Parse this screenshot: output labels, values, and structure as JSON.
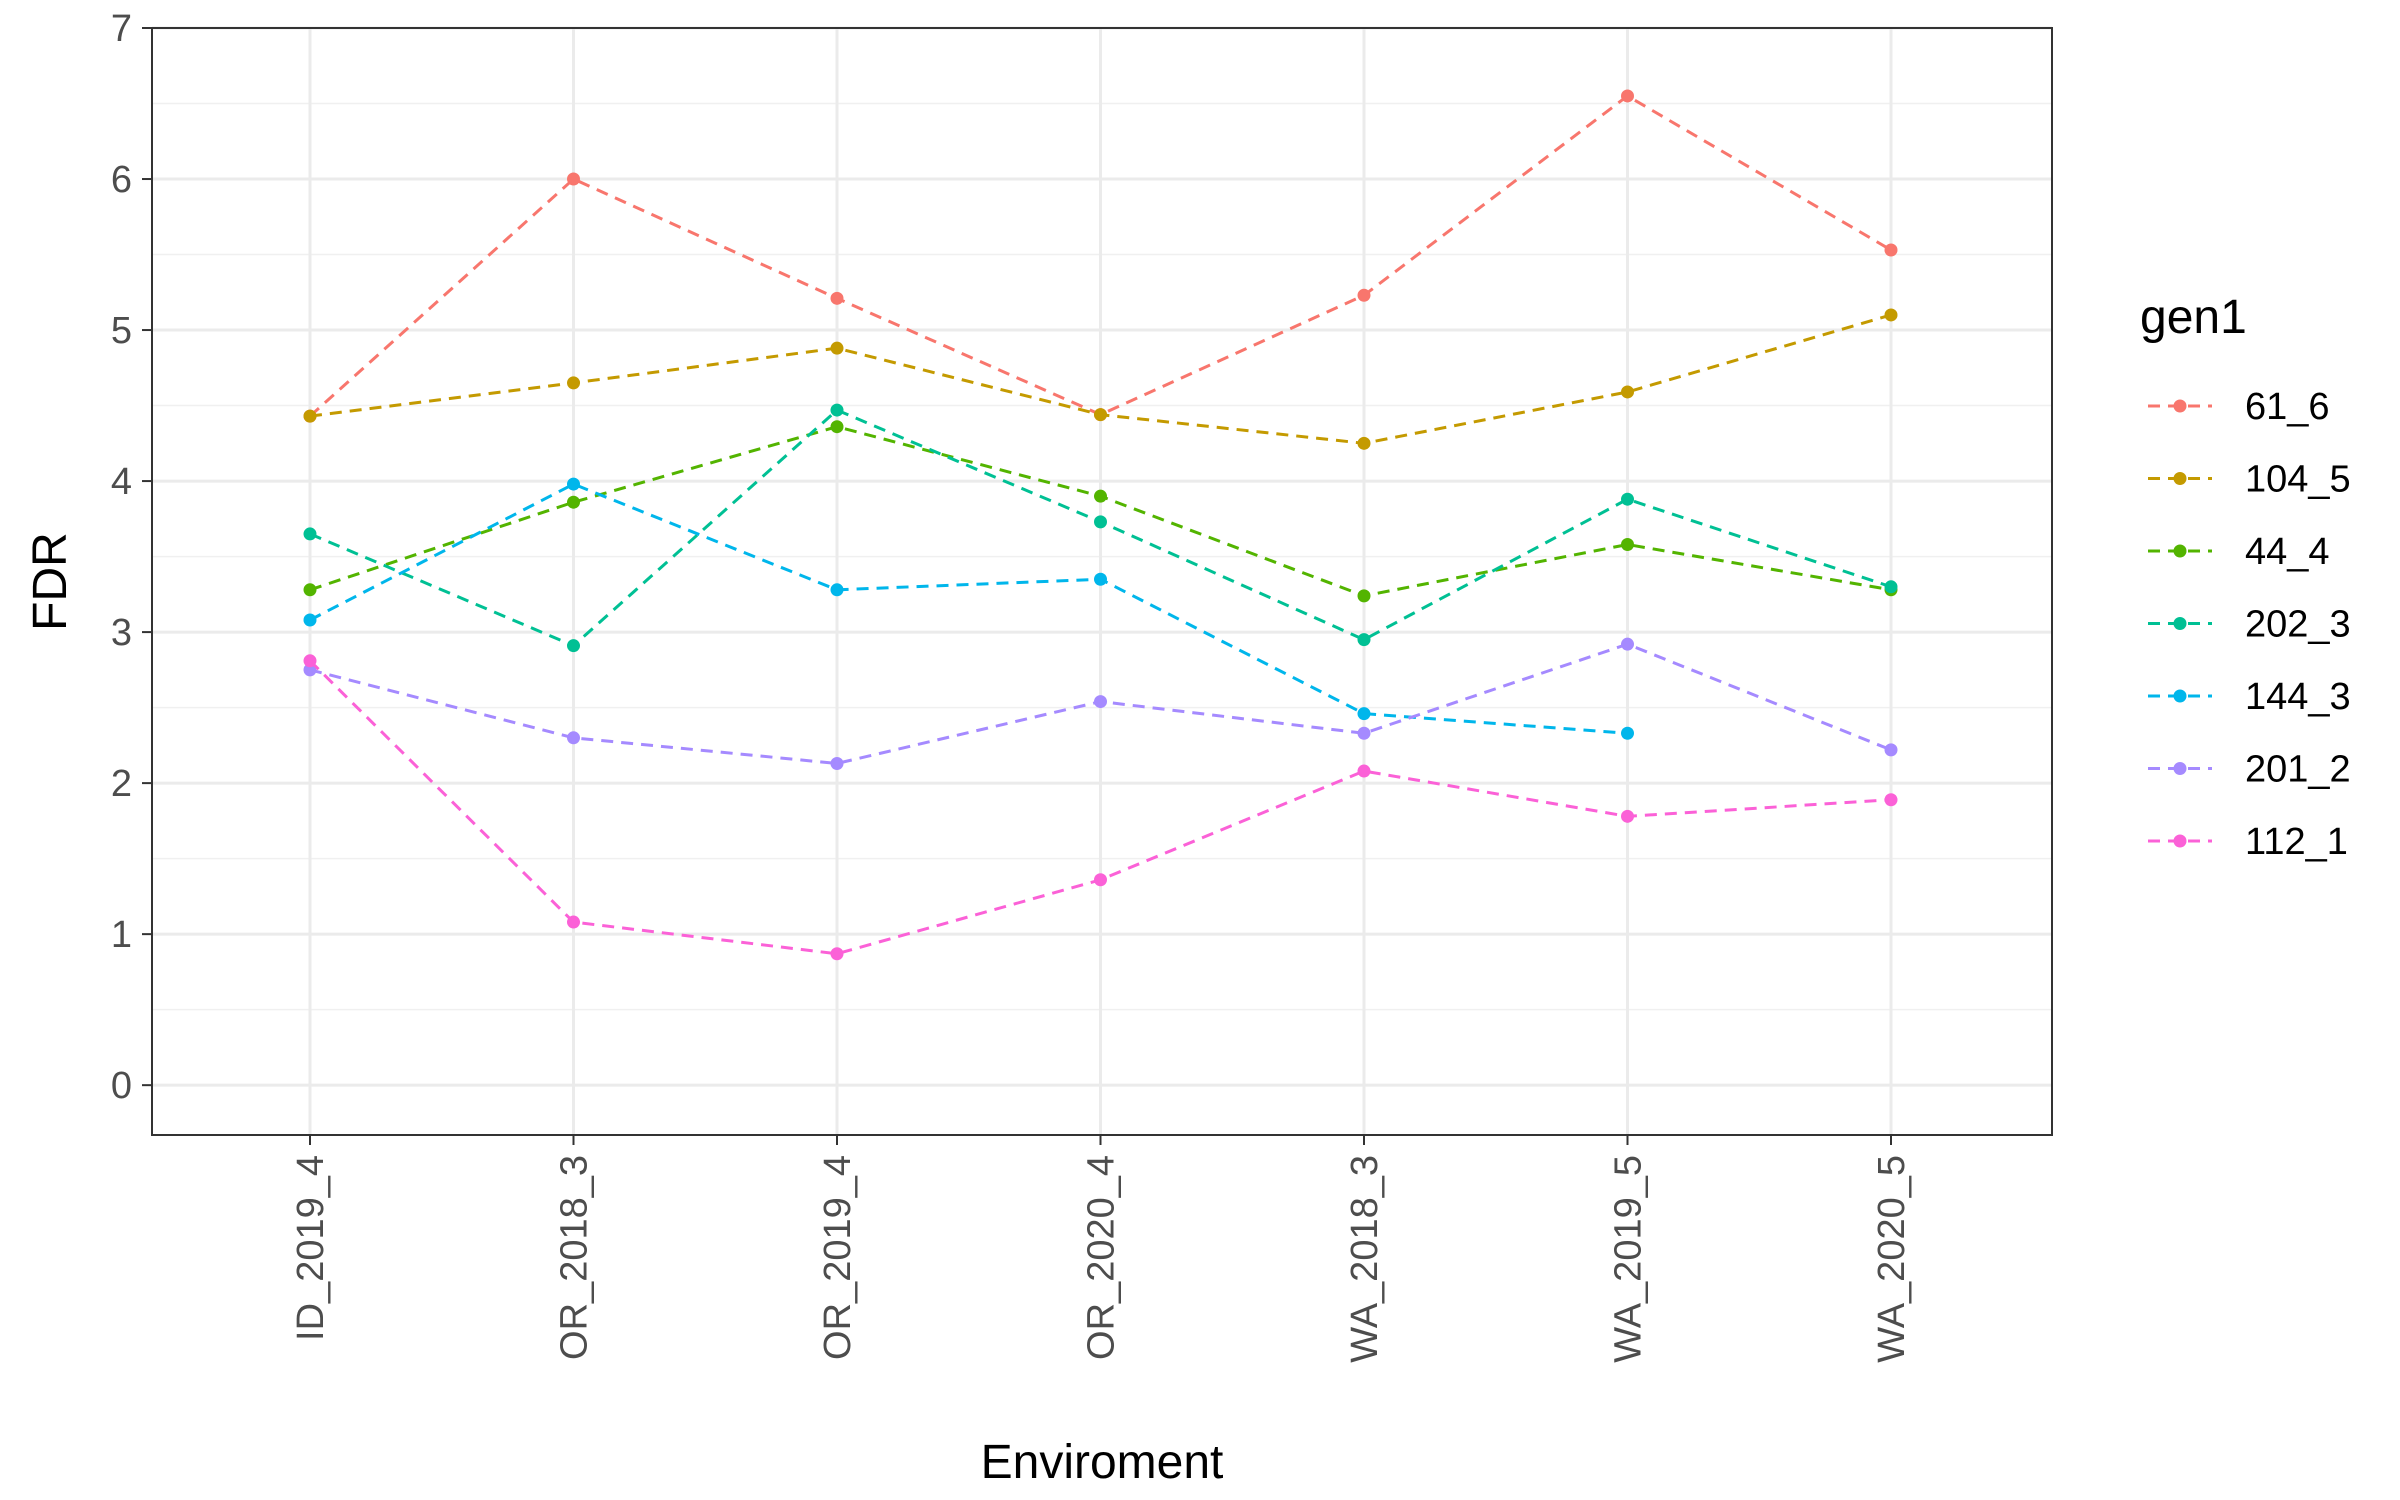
{
  "chart_data": {
    "type": "line",
    "xlabel": "Enviroment",
    "ylabel": "FDR",
    "categories": [
      "ID_2019_4",
      "OR_2018_3",
      "OR_2019_4",
      "OR_2020_4",
      "WA_2018_3",
      "WA_2019_5",
      "WA_2020_5"
    ],
    "yticks": [
      "0",
      "1",
      "2",
      "3",
      "4",
      "5",
      "6",
      "7"
    ],
    "ylim": [
      -0.33,
      7.0
    ],
    "grid": true,
    "line_style": "dashed",
    "legend": {
      "title": "gen1",
      "position": "right"
    },
    "series": [
      {
        "name": "61_6",
        "color": "#F8766D",
        "values": [
          4.43,
          6.0,
          5.21,
          4.44,
          5.23,
          6.55,
          5.53
        ]
      },
      {
        "name": "104_5",
        "color": "#C49A00",
        "values": [
          4.43,
          4.65,
          4.88,
          4.44,
          4.25,
          4.59,
          5.1
        ]
      },
      {
        "name": "44_4",
        "color": "#53B400",
        "values": [
          3.28,
          3.86,
          4.36,
          3.9,
          3.24,
          3.58,
          3.28
        ]
      },
      {
        "name": "202_3",
        "color": "#00C094",
        "values": [
          3.65,
          2.91,
          4.47,
          3.73,
          2.95,
          3.88,
          3.3
        ]
      },
      {
        "name": "144_3",
        "color": "#00B6EB",
        "values": [
          3.08,
          3.98,
          3.28,
          3.35,
          2.46,
          2.33,
          null
        ]
      },
      {
        "name": "201_2",
        "color": "#A58AFF",
        "values": [
          2.75,
          2.3,
          2.13,
          2.54,
          2.33,
          2.92,
          2.22
        ]
      },
      {
        "name": "112_1",
        "color": "#FB61D7",
        "values": [
          2.81,
          1.08,
          0.87,
          1.36,
          2.08,
          1.78,
          1.89
        ]
      }
    ]
  }
}
